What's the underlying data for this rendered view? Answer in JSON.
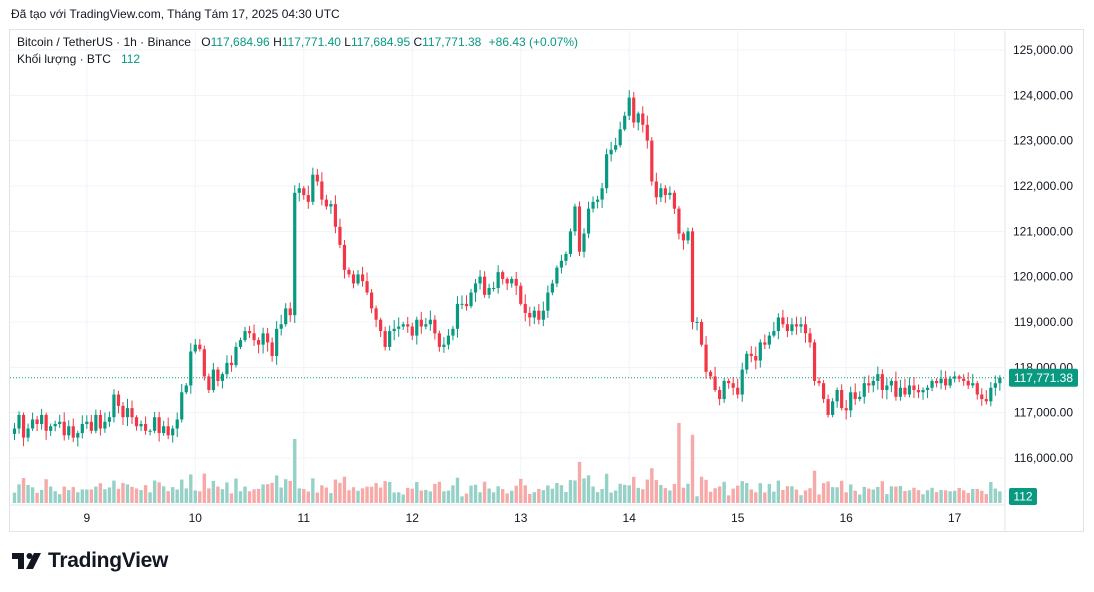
{
  "caption": "Đã tạo với TradingView.com, Tháng Tám 17, 2025 04:30 UTC",
  "legend": {
    "symbol": "Bitcoin / TetherUS · 1h · Binance",
    "o_label": "O",
    "o_value": "117,684.96",
    "h_label": "H",
    "h_value": "117,771.40",
    "l_label": "L",
    "l_value": "117,684.95",
    "c_label": "C",
    "c_value": "117,771.38",
    "change": "+86.43 (+0.07%)",
    "volume_label": "Khối lượng · BTC",
    "volume_value": "112"
  },
  "brand": {
    "name": "TradingView",
    "icon": "tradingview-logo-icon"
  },
  "colors": {
    "up": "#089981",
    "down": "#f23645",
    "vol_up": "#95d1c7",
    "vol_down": "#f7a9a7",
    "grid": "#f0f3fa"
  },
  "chart_data": {
    "type": "candlestick",
    "ylim": [
      115400,
      125400
    ],
    "y_ticks": [
      116000,
      117000,
      118000,
      119000,
      120000,
      121000,
      122000,
      123000,
      124000,
      125000
    ],
    "y_tick_labels": [
      "116,000.00",
      "117,000.00",
      "118,000.00",
      "119,000.00",
      "120,000.00",
      "121,000.00",
      "122,000.00",
      "123,000.00",
      "124,000.00",
      "125,000.00"
    ],
    "x_tick_labels": [
      "9",
      "10",
      "11",
      "12",
      "13",
      "14",
      "15",
      "16",
      "17"
    ],
    "x_tick_index": [
      16,
      40,
      64,
      88,
      112,
      136,
      160,
      184,
      208
    ],
    "last_price": 117771.38,
    "last_price_label": "117,771.38",
    "volume_last_label": "112",
    "close": [
      116650,
      116950,
      116450,
      116650,
      116850,
      116750,
      116950,
      116600,
      116700,
      116750,
      116800,
      116500,
      116700,
      116450,
      116550,
      116750,
      116800,
      116600,
      116950,
      116650,
      116800,
      116900,
      117400,
      117150,
      116900,
      117100,
      116900,
      116700,
      116750,
      116600,
      116600,
      116900,
      116550,
      116700,
      116500,
      116650,
      116850,
      117450,
      117600,
      118350,
      118500,
      118400,
      117800,
      117500,
      117950,
      117700,
      117850,
      118100,
      118050,
      118450,
      118600,
      118800,
      118750,
      118600,
      118500,
      118750,
      118550,
      118250,
      118850,
      118950,
      119300,
      119150,
      121850,
      121950,
      121800,
      121650,
      122250,
      122100,
      121700,
      121550,
      121600,
      121100,
      120700,
      120150,
      120050,
      119850,
      120050,
      119900,
      119650,
      119300,
      119050,
      118800,
      118450,
      118800,
      118850,
      118900,
      118950,
      118900,
      118700,
      119050,
      118900,
      118950,
      119050,
      118750,
      118450,
      118500,
      118700,
      118850,
      119400,
      119400,
      119350,
      119650,
      119850,
      120000,
      119600,
      119750,
      119750,
      120100,
      119950,
      119850,
      119950,
      119800,
      119400,
      119200,
      119100,
      119250,
      119050,
      119250,
      119650,
      119850,
      120200,
      120350,
      120500,
      121000,
      121550,
      120550,
      120950,
      121500,
      121650,
      121700,
      121950,
      122700,
      122800,
      122900,
      123250,
      123550,
      123950,
      123400,
      123600,
      123350,
      123000,
      122100,
      121750,
      121950,
      121800,
      121850,
      121500,
      120950,
      120800,
      121000,
      119000,
      119000,
      118500,
      117900,
      117800,
      117500,
      117300,
      117700,
      117650,
      117550,
      117400,
      117950,
      118300,
      118250,
      118150,
      118550,
      118500,
      118700,
      118800,
      119100,
      118950,
      118800,
      118950,
      118900,
      118950,
      118750,
      118550,
      117700,
      117650,
      117300,
      116950,
      117250,
      117500,
      117100,
      117050,
      117450,
      117300,
      117350,
      117650,
      117600,
      117700,
      117850,
      117500,
      117600,
      117700,
      117350,
      117550,
      117400,
      117600,
      117500,
      117450,
      117500,
      117550,
      117700,
      117650,
      117750,
      117600,
      117750,
      117800,
      117750,
      117700,
      117600,
      117650,
      117400,
      117300,
      117250,
      117550,
      117650,
      117771
    ]
  }
}
